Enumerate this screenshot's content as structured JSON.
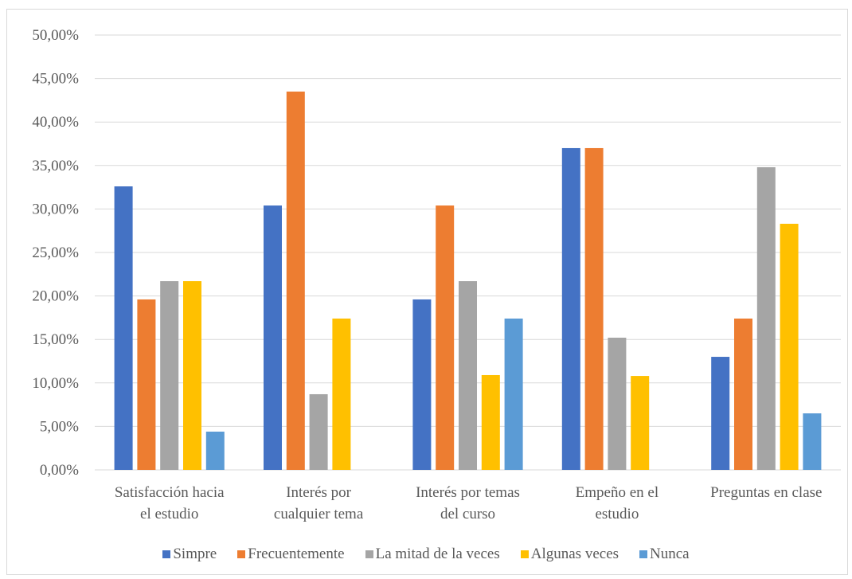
{
  "chart_data": {
    "type": "bar",
    "title": "",
    "xlabel": "",
    "ylabel": "",
    "ylim": [
      0,
      50
    ],
    "yticks": [
      0,
      5,
      10,
      15,
      20,
      25,
      30,
      35,
      40,
      45,
      50
    ],
    "ytick_labels": [
      "0,00%",
      "5,00%",
      "10,00%",
      "15,00%",
      "20,00%",
      "25,00%",
      "30,00%",
      "35,00%",
      "40,00%",
      "45,00%",
      "50,00%"
    ],
    "grid": true,
    "legend_position": "bottom",
    "categories": [
      [
        "Satisfacción hacia",
        "el estudio"
      ],
      [
        "Interés por",
        "cualquier tema"
      ],
      [
        "Interés por temas",
        "del curso"
      ],
      [
        "Empeño en el",
        "estudio"
      ],
      [
        "Preguntas en clase"
      ]
    ],
    "series": [
      {
        "name": "Simpre",
        "color": "#4472c4",
        "values": [
          32.6,
          30.4,
          19.6,
          37.0,
          13.0
        ]
      },
      {
        "name": "Frecuentemente",
        "color": "#ed7d31",
        "values": [
          19.6,
          43.5,
          30.4,
          37.0,
          17.4
        ]
      },
      {
        "name": "La mitad de la veces",
        "color": "#a5a5a5",
        "values": [
          21.7,
          8.7,
          21.7,
          15.2,
          34.8
        ]
      },
      {
        "name": "Algunas veces",
        "color": "#ffc000",
        "values": [
          21.7,
          17.4,
          10.9,
          10.8,
          28.3
        ]
      },
      {
        "name": "Nunca",
        "color": "#5b9bd5",
        "values": [
          4.4,
          0,
          17.4,
          0,
          6.5
        ]
      }
    ]
  }
}
